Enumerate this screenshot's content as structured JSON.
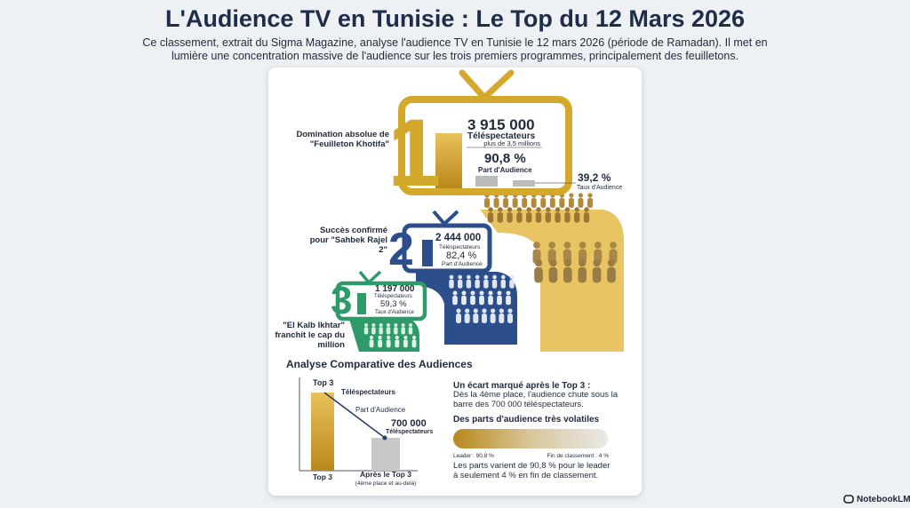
{
  "header": {
    "title": "L'Audience TV en Tunisie : Le Top du 12 Mars 2026",
    "subtitle": "Ce classement, extrait du Sigma Magazine, analyse l'audience TV en Tunisie le 12 mars 2026 (période de Ramadan). Il met en lumière une concentration massive de l'audience sur les trois premiers programmes, principalement des feuilletons."
  },
  "ranking": [
    {
      "rank": "1",
      "caption": "Domination absolue de \"Feuilleton Khotifa\"",
      "viewers": "3 915 000",
      "viewers_label": "Téléspectateurs",
      "note": "plus de 3,5 millions",
      "share": "90,8 %",
      "share_label": "Part d'Audience",
      "rate": "39,2 %",
      "rate_label": "Taux d'Audience"
    },
    {
      "rank": "2",
      "caption": "Succès confirmé pour \"Sahbek Rajel 2\"",
      "viewers": "2 444 000",
      "viewers_label": "Téléspectateurs",
      "share": "82,4 %",
      "share_label": "Part d'Audience"
    },
    {
      "rank": "3",
      "caption": "\"El Kalb Ikhtar\" franchit le cap du million",
      "viewers": "1 197 000",
      "viewers_label": "Téléspectateurs",
      "rate": "59,3 %",
      "rate_label": "Taux d'Audience"
    }
  ],
  "comparison": {
    "title": "Analyse Comparative des Audiences",
    "chart": {
      "top_label": "Top 3",
      "top_viewers_label": "Téléspectateurs",
      "share_label": "Part d'Audience",
      "after_value": "700 000",
      "after_viewers_label": "Téléspectateurs",
      "x_top": "Top 3",
      "x_after": "Après le Top 3",
      "x_after_note": "(4ème place et au-delà)"
    },
    "gap_heading": "Un écart marqué après le Top 3 :",
    "gap_text": "Dès la 4ème place, l'audience chute sous la barre des 700 000 téléspectateurs.",
    "volatility_heading": "Des parts d'audience très volatiles",
    "leader_label": "Leader : 90,8 %",
    "last_label": "Fin de classement : 4 %",
    "volatility_text": "Les parts varient de 90,8 % pour le leader à seulement 4 % en fin de classement."
  },
  "footer": {
    "brand": "NotebookLM"
  }
}
